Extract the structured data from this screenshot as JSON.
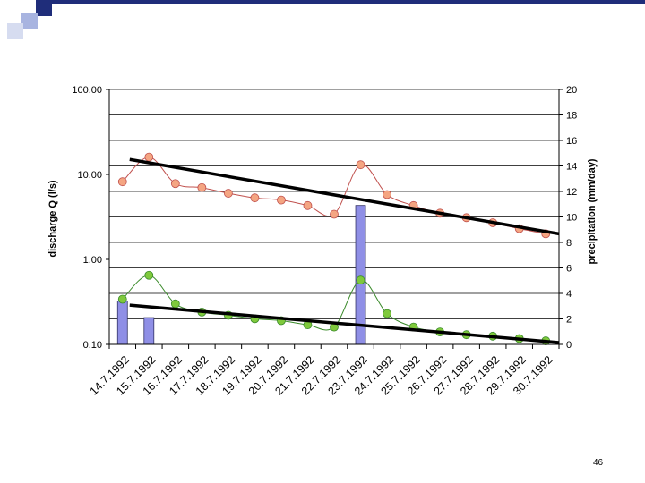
{
  "slide": {
    "page_number": "46",
    "accent_colors": [
      "#1f2d7a",
      "#a8b4e0",
      "#d6dcf0"
    ]
  },
  "chart_data": {
    "type": "line",
    "title": "",
    "categories": [
      "14.7.1992",
      "15.7.1992",
      "16.7.1992",
      "17.7.1992",
      "18.7.1992",
      "19.7.1992",
      "20.7.1992",
      "21.7.1992",
      "22.7.1992",
      "23.7.1992",
      "24.7.1992",
      "25.7.1992",
      "26.7.1992",
      "27.7.1992",
      "28.7.1992",
      "29.7.1992",
      "30.7.1992"
    ],
    "y_left": {
      "label": "discharge Q (l/s)",
      "scale": "log",
      "range": [
        0.1,
        100
      ],
      "ticks": [
        "0.10",
        "1.00",
        "10.00",
        "100.00"
      ]
    },
    "y_right": {
      "label": "precipitation (mm/day)",
      "scale": "linear",
      "range": [
        0,
        20
      ],
      "ticks": [
        "0",
        "2",
        "4",
        "6",
        "8",
        "10",
        "12",
        "14",
        "16",
        "18",
        "20"
      ]
    },
    "grid": "horizontal major gridlines",
    "legend": "none",
    "series": [
      {
        "type": "line",
        "axis": "left",
        "color": "#c0504d",
        "marker_fill": "#f4a582",
        "values": [
          8.2,
          16.0,
          7.8,
          7.0,
          6.0,
          5.3,
          5.0,
          4.3,
          3.4,
          13.0,
          5.8,
          4.3,
          3.5,
          3.1,
          2.7,
          2.3,
          2.0
        ]
      },
      {
        "type": "line",
        "axis": "left",
        "color": "#3a8a2a",
        "marker_fill": "#7fc93c",
        "values": [
          0.34,
          0.65,
          0.3,
          0.24,
          0.22,
          0.2,
          0.19,
          0.17,
          0.16,
          0.57,
          0.23,
          0.16,
          0.14,
          0.13,
          0.125,
          0.117,
          0.11
        ]
      },
      {
        "type": "bar",
        "axis": "right",
        "color": "#8f8fe6",
        "values": [
          3.4,
          2.1,
          0,
          0,
          0,
          0,
          0,
          0,
          0,
          10.9,
          0,
          0,
          0,
          0,
          0,
          0,
          0
        ]
      },
      {
        "type": "trendline",
        "axis": "left",
        "color": "#000000",
        "from": {
          "x": "14.7.1992",
          "y": 15.0
        },
        "to": {
          "x": "30.7.1992",
          "y": 2.0
        }
      },
      {
        "type": "trendline",
        "axis": "left",
        "color": "#000000",
        "from": {
          "x": "14.7.1992",
          "y": 0.29
        },
        "to": {
          "x": "30.7.1992",
          "y": 0.105
        }
      }
    ]
  }
}
